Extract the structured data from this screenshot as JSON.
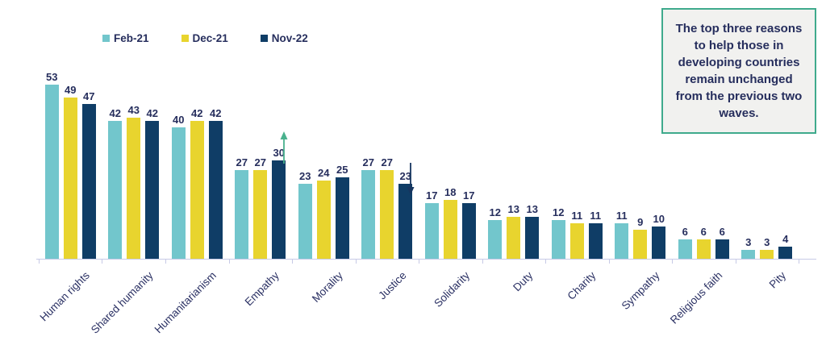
{
  "legend": {
    "items": [
      {
        "label": "Feb-21",
        "color": "#72c6cc"
      },
      {
        "label": "Dec-21",
        "color": "#e8d42e"
      },
      {
        "label": "Nov-22",
        "color": "#0f3d66"
      }
    ]
  },
  "callout": {
    "text": "The top three reasons to help those in developing countries remain unchanged from the previous two waves.",
    "border_color": "#3faa8c",
    "background_color": "#f1f1ef"
  },
  "chart_data": {
    "type": "bar",
    "categories": [
      "Human rights",
      "Shared humanity",
      "Humanitarianism",
      "Empathy",
      "Morality",
      "Justice",
      "Solidarity",
      "Duty",
      "Charity",
      "Sympathy",
      "Religious faith",
      "Pity"
    ],
    "series": [
      {
        "name": "Feb-21",
        "color": "#72c6cc",
        "values": [
          53,
          42,
          40,
          27,
          23,
          27,
          17,
          12,
          12,
          11,
          6,
          3
        ]
      },
      {
        "name": "Dec-21",
        "color": "#e8d42e",
        "values": [
          49,
          43,
          42,
          27,
          24,
          27,
          18,
          13,
          11,
          9,
          6,
          3
        ]
      },
      {
        "name": "Nov-22",
        "color": "#0f3d66",
        "values": [
          47,
          42,
          42,
          30,
          25,
          23,
          17,
          13,
          11,
          10,
          6,
          4
        ]
      }
    ],
    "title": "",
    "xlabel": "",
    "ylabel": "",
    "ylim": [
      0,
      55
    ],
    "grid": false,
    "legend_position": "top-left",
    "value_labels_shown": true,
    "annotations": [
      {
        "category": "Empathy",
        "direction": "up",
        "icon": "trend-up-arrow-icon",
        "color": "#49b18d"
      },
      {
        "category": "Justice",
        "direction": "down",
        "icon": "trend-down-arrow-icon",
        "color": "#16355f"
      }
    ]
  },
  "colors": {
    "axis": "#c7cae6",
    "text": "#262e5d"
  }
}
